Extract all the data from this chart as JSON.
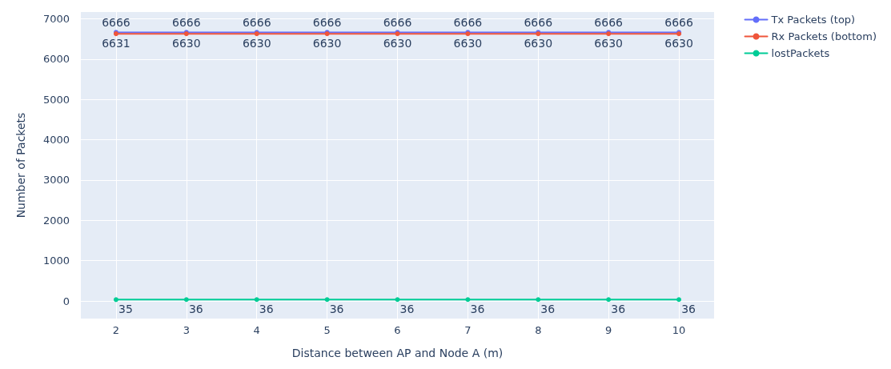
{
  "chart_data": {
    "type": "line",
    "xlabel": "Distance between AP and Node A (m)",
    "ylabel": "Number of Packets",
    "x": [
      2,
      3,
      4,
      5,
      6,
      7,
      8,
      9,
      10
    ],
    "series": [
      {
        "name": "Tx Packets (top)",
        "color": "#636efa",
        "values": [
          6666,
          6666,
          6666,
          6666,
          6666,
          6666,
          6666,
          6666,
          6666
        ]
      },
      {
        "name": "Rx Packets (bottom)",
        "color": "#ef553b",
        "values": [
          6631,
          6630,
          6630,
          6630,
          6630,
          6630,
          6630,
          6630,
          6630
        ]
      },
      {
        "name": "lostPackets",
        "color": "#00cc96",
        "values": [
          35,
          36,
          36,
          36,
          36,
          36,
          36,
          36,
          36
        ]
      }
    ],
    "xlim": [
      1.5,
      10.5
    ],
    "xticks": [
      2,
      3,
      4,
      5,
      6,
      7,
      8,
      9,
      10
    ],
    "ylim": [
      -436,
      7170
    ],
    "yticks": [
      0,
      1000,
      2000,
      3000,
      4000,
      5000,
      6000,
      7000
    ],
    "grid": true,
    "legend": "top right",
    "marker": "circle",
    "line_style": "solid",
    "data_labels": true
  }
}
